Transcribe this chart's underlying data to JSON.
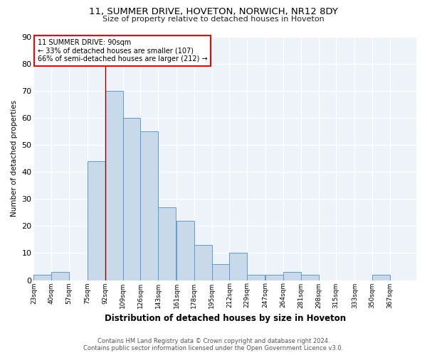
{
  "title1": "11, SUMMER DRIVE, HOVETON, NORWICH, NR12 8DY",
  "title2": "Size of property relative to detached houses in Hoveton",
  "xlabel": "Distribution of detached houses by size in Hoveton",
  "ylabel": "Number of detached properties",
  "footnote1": "Contains HM Land Registry data © Crown copyright and database right 2024.",
  "footnote2": "Contains public sector information licensed under the Open Government Licence v3.0.",
  "bin_labels": [
    "23sqm",
    "40sqm",
    "57sqm",
    "75sqm",
    "92sqm",
    "109sqm",
    "126sqm",
    "143sqm",
    "161sqm",
    "178sqm",
    "195sqm",
    "212sqm",
    "229sqm",
    "247sqm",
    "264sqm",
    "281sqm",
    "298sqm",
    "315sqm",
    "333sqm",
    "350sqm",
    "367sqm"
  ],
  "bin_left_edges": [
    23,
    40,
    57,
    75,
    92,
    109,
    126,
    143,
    161,
    178,
    195,
    212,
    229,
    247,
    264,
    281,
    298,
    315,
    333,
    350,
    367
  ],
  "bin_width": 17,
  "bar_heights": [
    2,
    3,
    0,
    44,
    70,
    60,
    55,
    27,
    22,
    13,
    6,
    10,
    2,
    2,
    3,
    2,
    0,
    0,
    0,
    2,
    0
  ],
  "bar_color": "#c8daea",
  "bar_edge_color": "#5b9bd5",
  "property_line_x": 92,
  "annotation_line1": "11 SUMMER DRIVE: 90sqm",
  "annotation_line2": "← 33% of detached houses are smaller (107)",
  "annotation_line3": "66% of semi-detached houses are larger (212) →",
  "annotation_box_color": "white",
  "annotation_box_edge": "red",
  "vline_color": "darkred",
  "yticks": [
    0,
    10,
    20,
    30,
    40,
    50,
    60,
    70,
    80,
    90
  ],
  "ylim": [
    0,
    90
  ],
  "background_color": "#eef2f9"
}
